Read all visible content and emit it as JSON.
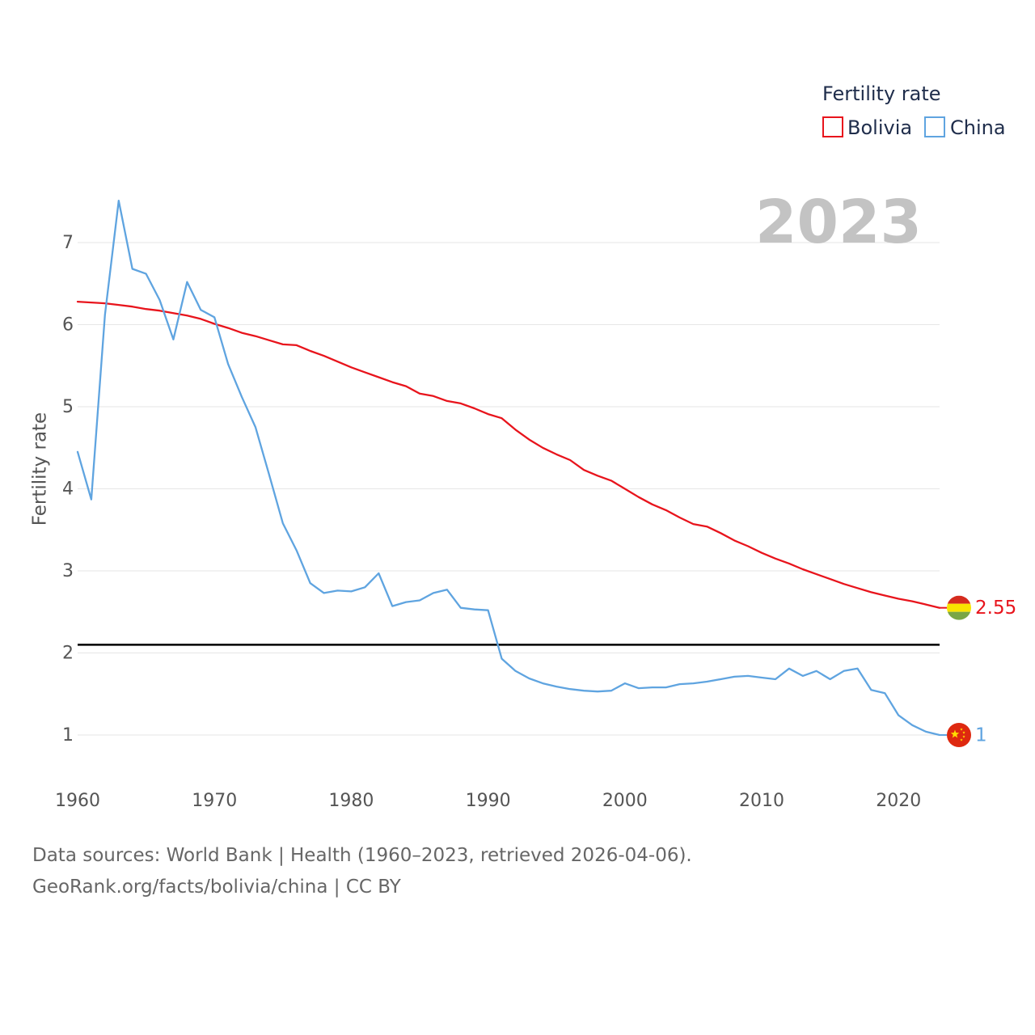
{
  "chart_data": {
    "type": "line",
    "title": "Fertility rate",
    "legend_title": "Fertility rate",
    "xlabel": "",
    "ylabel": "Fertility rate",
    "current_year": "2023",
    "xlim": [
      1960,
      2023
    ],
    "ylim": [
      0.5,
      7.5
    ],
    "x_ticks": [
      1960,
      1970,
      1980,
      1990,
      2000,
      2010,
      2020
    ],
    "y_ticks": [
      1,
      2,
      3,
      4,
      5,
      6,
      7
    ],
    "reference_line": {
      "value": 2.1
    },
    "legend_position": "top-right",
    "years": [
      1960,
      1961,
      1962,
      1963,
      1964,
      1965,
      1966,
      1967,
      1968,
      1969,
      1970,
      1971,
      1972,
      1973,
      1974,
      1975,
      1976,
      1977,
      1978,
      1979,
      1980,
      1981,
      1982,
      1983,
      1984,
      1985,
      1986,
      1987,
      1988,
      1989,
      1990,
      1991,
      1992,
      1993,
      1994,
      1995,
      1996,
      1997,
      1998,
      1999,
      2000,
      2001,
      2002,
      2003,
      2004,
      2005,
      2006,
      2007,
      2008,
      2009,
      2010,
      2011,
      2012,
      2013,
      2014,
      2015,
      2016,
      2017,
      2018,
      2019,
      2020,
      2021,
      2022,
      2023
    ],
    "series": [
      {
        "name": "Bolivia",
        "color": "#e8141c",
        "end_label": "2.55",
        "flag": "bolivia-flag",
        "values": [
          6.28,
          6.27,
          6.26,
          6.24,
          6.22,
          6.19,
          6.17,
          6.14,
          6.11,
          6.07,
          6.01,
          5.96,
          5.9,
          5.86,
          5.81,
          5.76,
          5.75,
          5.68,
          5.62,
          5.55,
          5.48,
          5.42,
          5.36,
          5.3,
          5.25,
          5.16,
          5.13,
          5.07,
          5.04,
          4.98,
          4.91,
          4.86,
          4.72,
          4.6,
          4.5,
          4.42,
          4.35,
          4.23,
          4.16,
          4.1,
          4.0,
          3.9,
          3.81,
          3.74,
          3.65,
          3.57,
          3.54,
          3.46,
          3.37,
          3.3,
          3.22,
          3.15,
          3.09,
          3.02,
          2.96,
          2.9,
          2.84,
          2.79,
          2.74,
          2.7,
          2.66,
          2.63,
          2.59,
          2.55
        ]
      },
      {
        "name": "China",
        "color": "#5fa4e0",
        "end_label": "1",
        "flag": "china-flag",
        "values": [
          4.45,
          3.87,
          6.12,
          7.51,
          6.68,
          6.62,
          6.3,
          5.82,
          6.52,
          6.18,
          6.09,
          5.52,
          5.12,
          4.75,
          4.17,
          3.58,
          3.25,
          2.85,
          2.73,
          2.76,
          2.75,
          2.8,
          2.97,
          2.57,
          2.62,
          2.64,
          2.73,
          2.77,
          2.55,
          2.53,
          2.52,
          1.93,
          1.78,
          1.69,
          1.63,
          1.59,
          1.56,
          1.54,
          1.53,
          1.54,
          1.63,
          1.57,
          1.58,
          1.58,
          1.62,
          1.63,
          1.65,
          1.68,
          1.71,
          1.72,
          1.7,
          1.68,
          1.81,
          1.72,
          1.78,
          1.68,
          1.78,
          1.81,
          1.55,
          1.51,
          1.24,
          1.12,
          1.04,
          1.0
        ]
      }
    ]
  },
  "footer": {
    "sources": "Data sources: World Bank | Health (1960–2023, retrieved 2026-04-06).",
    "attribution": "GeoRank.org/facts/bolivia/china | CC BY"
  }
}
